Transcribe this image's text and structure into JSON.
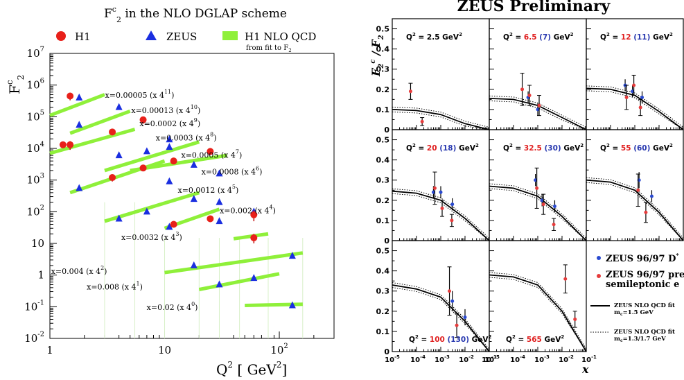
{
  "left": {
    "title": "F",
    "title_sub": "2",
    "title_sup": "c",
    "title_rest": " in  the  NLO DGLAP  scheme",
    "legend": [
      {
        "label": "H1",
        "marker": "circle",
        "color": "#e8201a"
      },
      {
        "label": "ZEUS",
        "marker": "triangle",
        "color": "#1a2ee0"
      },
      {
        "label": "H1 NLO QCD",
        "marker": "band",
        "color": "#8ff03a",
        "note": "from fit to F",
        "note_sub": "2"
      }
    ],
    "ylabel": "F",
    "ylabel_sub": "2",
    "ylabel_sup": "c",
    "xlabel": "Q",
    "xlabel_sup": "2",
    "xlabel_unit": "[ GeV",
    "xlabel_unit_sup": "2",
    "xlabel_unit_end": "]",
    "xticks": [
      {
        "v": 1,
        "l": "1"
      },
      {
        "v": 10,
        "l": "10"
      },
      {
        "v": 100,
        "l": "10"
      }
    ],
    "xtick_sup": [
      "",
      "",
      "2"
    ],
    "yticks": [
      {
        "e": -2,
        "l": "10",
        "s": "-2"
      },
      {
        "e": -1,
        "l": "10",
        "s": "-1"
      },
      {
        "e": 0,
        "l": "1",
        "s": ""
      },
      {
        "e": 1,
        "l": "10",
        "s": ""
      },
      {
        "e": 2,
        "l": "10",
        "s": "2"
      },
      {
        "e": 3,
        "l": "10",
        "s": "3"
      },
      {
        "e": 4,
        "l": "10",
        "s": "4"
      },
      {
        "e": 5,
        "l": "10",
        "s": "5"
      },
      {
        "e": 6,
        "l": "10",
        "s": "6"
      },
      {
        "e": 7,
        "l": "10",
        "s": "7"
      }
    ],
    "bin_labels": [
      {
        "text": "x=0.00005 (x 4",
        "sup": "11",
        "q2": 6.5,
        "f": 400000
      },
      {
        "text": "x=0.00013 (x 4",
        "sup": "10",
        "q2": 11,
        "f": 130000
      },
      {
        "text": "x=0.0002 (x 4",
        "sup": "9",
        "q2": 13,
        "f": 50000
      },
      {
        "text": "x=0.0003 (x 4",
        "sup": "8",
        "q2": 18,
        "f": 18000
      },
      {
        "text": "x=0.0005 (x 4",
        "sup": "7",
        "q2": 30,
        "f": 5000
      },
      {
        "text": "x=0.0008 (x 4",
        "sup": "6",
        "q2": 45,
        "f": 1500
      },
      {
        "text": "x=0.0012 (x 4",
        "sup": "5",
        "q2": 28,
        "f": 400
      },
      {
        "text": "x=0.002 (x 4",
        "sup": "4",
        "q2": 65,
        "f": 90
      },
      {
        "text": "x=0.0032 (x 4",
        "sup": "3",
        "q2": 9,
        "f": 13
      },
      {
        "text": "x=0.004 (x 4",
        "sup": "2",
        "q2": 2.2,
        "f": 1.1
      },
      {
        "text": "x=0.008 (x 4",
        "sup": "1",
        "q2": 4.5,
        "f": 0.35
      },
      {
        "text": "x=0.02 (x 4",
        "sup": "0",
        "q2": 15,
        "f": 0.08
      }
    ]
  },
  "chart_data": [
    {
      "type": "scatter",
      "xscale": "log",
      "yscale": "log",
      "xlim": [
        1,
        300
      ],
      "ylim": [
        0.01,
        10000000
      ],
      "series": [
        {
          "name": "H1",
          "points": [
            [
              1.5,
              450000
            ],
            [
              1.5,
              13000
            ],
            [
              3.5,
              33000
            ],
            [
              1.3,
              13000
            ],
            [
              6.5,
              80000
            ],
            [
              3.5,
              1200
            ],
            [
              6.5,
              2400
            ],
            [
              12,
              4000
            ],
            [
              25,
              8000
            ],
            [
              12,
              40
            ],
            [
              25,
              60
            ],
            [
              60,
              80
            ],
            [
              60,
              15
            ]
          ],
          "yerr": [
            [
              120000,
              120000
            ],
            [
              4000,
              4000
            ],
            [
              6000,
              6000
            ],
            [
              0,
              0
            ],
            [
              20000,
              20000
            ],
            [
              300,
              300
            ],
            [
              300,
              300
            ],
            [
              700,
              700
            ],
            [
              1800,
              1800
            ],
            [
              8,
              8
            ],
            [
              8,
              8
            ],
            [
              30,
              30
            ],
            [
              5,
              5
            ]
          ]
        },
        {
          "name": "ZEUS",
          "points": [
            [
              1.8,
              400000
            ],
            [
              1.8,
              55000
            ],
            [
              4,
              200000
            ],
            [
              1.8,
              550
            ],
            [
              4,
              6000
            ],
            [
              7,
              8000
            ],
            [
              11,
              11000
            ],
            [
              11,
              19000
            ],
            [
              18,
              3000
            ],
            [
              30,
              1600
            ],
            [
              11,
              900
            ],
            [
              18,
              250
            ],
            [
              30,
              200
            ],
            [
              4,
              60
            ],
            [
              7,
              100
            ],
            [
              11,
              33
            ],
            [
              30,
              50
            ],
            [
              60,
              100
            ],
            [
              18,
              2
            ],
            [
              30,
              0.5
            ],
            [
              60,
              0.8
            ],
            [
              130,
              4
            ],
            [
              130,
              0.11
            ]
          ]
        },
        {
          "name": "H1 NLO QCD",
          "segments": [
            {
              "q2": [
                1,
                3
              ],
              "f": [
                110000,
                500000
              ]
            },
            {
              "q2": [
                1.5,
                5
              ],
              "f": [
                30000,
                150000
              ]
            },
            {
              "q2": [
                1,
                5.5
              ],
              "f": [
                7000,
                40000
              ]
            },
            {
              "q2": [
                1.5,
                10
              ],
              "f": [
                400,
                4000
              ]
            },
            {
              "q2": [
                3,
                20
              ],
              "f": [
                2000,
                16000
              ]
            },
            {
              "q2": [
                5,
                35
              ],
              "f": [
                2000,
                6000
              ]
            },
            {
              "q2": [
                3,
                20
              ],
              "f": [
                50,
                400
              ]
            },
            {
              "q2": [
                10,
                30
              ],
              "f": [
                30,
                120
              ]
            },
            {
              "q2": [
                40,
                80
              ],
              "f": [
                14,
                20
              ]
            },
            {
              "q2": [
                10,
                160
              ],
              "f": [
                1.2,
                5
              ]
            },
            {
              "q2": [
                20,
                100
              ],
              "f": [
                0.35,
                1.1
              ]
            },
            {
              "q2": [
                50,
                160
              ],
              "f": [
                0.11,
                0.12
              ]
            }
          ]
        }
      ]
    },
    {
      "type": "scatter",
      "title": "ZEUS Preliminary",
      "ylabel": "F",
      "ylabel_sub": "2",
      "ylabel_sup": "c",
      "ylabel_mid": " / F",
      "ylabel_mid_sub": "2",
      "xlabel": "x",
      "xscale": "log",
      "xlim": [
        1e-05,
        0.1
      ],
      "yticks": [
        "0",
        "0.1",
        "0.2",
        "0.3",
        "0.4",
        "0.5"
      ],
      "xtick_labels": [
        {
          "l": "10",
          "s": "-5"
        },
        {
          "l": "10",
          "s": "-4"
        },
        {
          "l": "10",
          "s": "-3"
        },
        {
          "l": "10",
          "s": "-2"
        },
        {
          "l": "10",
          "s": "-1"
        }
      ],
      "panels": [
        {
          "q2_label_pre": "Q",
          "q2_label_red": "2.5",
          "q2_label_blue": "",
          "q2_label_unit": "GeV",
          "q2_label_full": "Q² = 2.5 GeV²",
          "plain": true,
          "red": [
            [
              5e-05,
              0.19,
              0.04
            ],
            [
              0.00015,
              0.04,
              0.02
            ]
          ],
          "blue": [],
          "fit": [
            [
              1e-05,
              0.1
            ],
            [
              0.0001,
              0.095
            ],
            [
              0.001,
              0.075
            ],
            [
              0.01,
              0.03
            ],
            [
              0.1,
              0.0
            ]
          ]
        },
        {
          "q2_label_pre": "Q",
          "q2_label_red": "6.5",
          "q2_label_blue": "(7)",
          "q2_label_unit": "GeV",
          "q2_label_full": "Q² = 6.5 (7) GeV²",
          "plain": false,
          "red": [
            [
              0.0002,
              0.2,
              0.08
            ],
            [
              0.0004,
              0.17,
              0.05
            ],
            [
              0.001,
              0.12,
              0.05
            ]
          ],
          "blue": [
            [
              0.0004,
              0.16,
              0.03
            ],
            [
              0.001,
              0.1,
              0.03
            ]
          ],
          "fit": [
            [
              1e-05,
              0.155
            ],
            [
              0.0001,
              0.15
            ],
            [
              0.001,
              0.12
            ],
            [
              0.01,
              0.06
            ],
            [
              0.1,
              0.0
            ]
          ]
        },
        {
          "q2_label_pre": "Q",
          "q2_label_red": "12",
          "q2_label_blue": "(11)",
          "q2_label_unit": "GeV",
          "q2_label_full": "Q² = 12 (11) GeV²",
          "plain": false,
          "red": [
            [
              0.0004,
              0.16,
              0.06
            ],
            [
              0.0008,
              0.22,
              0.05
            ],
            [
              0.0015,
              0.11,
              0.04
            ]
          ],
          "blue": [
            [
              0.0004,
              0.22,
              0.03
            ],
            [
              0.0008,
              0.19,
              0.03
            ],
            [
              0.002,
              0.16,
              0.03
            ]
          ],
          "fit": [
            [
              1e-05,
              0.205
            ],
            [
              0.0001,
              0.2
            ],
            [
              0.001,
              0.17
            ],
            [
              0.01,
              0.09
            ],
            [
              0.1,
              0.0
            ]
          ]
        },
        {
          "q2_label_pre": "Q",
          "q2_label_red": "20",
          "q2_label_blue": "(18)",
          "q2_label_unit": "GeV",
          "q2_label_full": "Q² = 20 (18) GeV²",
          "plain": false,
          "red": [
            [
              0.0005,
              0.26,
              0.08
            ],
            [
              0.001,
              0.16,
              0.04
            ],
            [
              0.0025,
              0.1,
              0.03
            ]
          ],
          "blue": [
            [
              0.0005,
              0.24,
              0.03
            ],
            [
              0.001,
              0.24,
              0.03
            ],
            [
              0.003,
              0.18,
              0.03
            ]
          ],
          "fit": [
            [
              1e-05,
              0.245
            ],
            [
              0.0001,
              0.235
            ],
            [
              0.001,
              0.2
            ],
            [
              0.01,
              0.11
            ],
            [
              0.1,
              0.0
            ]
          ]
        },
        {
          "q2_label_pre": "Q",
          "q2_label_red": "32.5",
          "q2_label_blue": "(30)",
          "q2_label_unit": "GeV",
          "q2_label_full": "Q² = 32.5 (30) GeV²",
          "plain": false,
          "red": [
            [
              0.0008,
              0.26,
              0.1
            ],
            [
              0.0015,
              0.18,
              0.05
            ],
            [
              0.004,
              0.08,
              0.03
            ]
          ],
          "blue": [
            [
              0.0008,
              0.3,
              0.03
            ],
            [
              0.0015,
              0.2,
              0.03
            ],
            [
              0.005,
              0.17,
              0.03
            ]
          ],
          "fit": [
            [
              1e-05,
              0.27
            ],
            [
              0.0001,
              0.26
            ],
            [
              0.001,
              0.22
            ],
            [
              0.01,
              0.12
            ],
            [
              0.1,
              0.0
            ]
          ]
        },
        {
          "q2_label_pre": "Q",
          "q2_label_red": "55",
          "q2_label_blue": "(60)",
          "q2_label_unit": "GeV",
          "q2_label_full": "Q² = 55 (60) GeV²",
          "plain": false,
          "red": [
            [
              0.0012,
              0.25,
              0.08
            ],
            [
              0.0025,
              0.14,
              0.05
            ]
          ],
          "blue": [
            [
              0.0015,
              0.3,
              0.04
            ],
            [
              0.005,
              0.22,
              0.03
            ]
          ],
          "fit": [
            [
              1e-05,
              0.3
            ],
            [
              0.0001,
              0.29
            ],
            [
              0.001,
              0.25
            ],
            [
              0.01,
              0.14
            ],
            [
              0.1,
              0.0
            ]
          ]
        },
        {
          "q2_label_pre": "Q",
          "q2_label_red": "100",
          "q2_label_blue": "(130)",
          "q2_label_unit": "GeV",
          "q2_label_full": "Q² = 100 (130) GeV²",
          "plain": false,
          "red": [
            [
              0.002,
              0.3,
              0.12
            ],
            [
              0.004,
              0.13,
              0.06
            ]
          ],
          "blue": [
            [
              0.003,
              0.25,
              0.05
            ],
            [
              0.01,
              0.17,
              0.04
            ]
          ],
          "fit": [
            [
              1e-05,
              0.33
            ],
            [
              0.0001,
              0.31
            ],
            [
              0.001,
              0.27
            ],
            [
              0.01,
              0.15
            ],
            [
              0.1,
              0.0
            ]
          ]
        },
        {
          "q2_label_pre": "Q",
          "q2_label_red": "565",
          "q2_label_blue": "",
          "q2_label_unit": "GeV",
          "q2_label_full": "Q² = 565 GeV²",
          "plain": false,
          "red": [
            [
              0.012,
              0.36,
              0.07
            ],
            [
              0.03,
              0.16,
              0.04
            ]
          ],
          "blue": [],
          "fit": [
            [
              1e-05,
              0.38
            ],
            [
              0.0001,
              0.37
            ],
            [
              0.001,
              0.33
            ],
            [
              0.01,
              0.2
            ],
            [
              0.1,
              0.0
            ]
          ]
        }
      ],
      "legend": [
        {
          "label": "ZEUS 96/97 D",
          "sup": "*",
          "marker": "dot",
          "color": "#2a4ad0"
        },
        {
          "label": "ZEUS 96/97 prel.",
          "label2": "semileptonic e",
          "marker": "dot",
          "color": "#e63c3c"
        },
        {
          "label": "ZEUS NLO QCD fit",
          "label2": "m",
          "label2_sub": "c",
          "label2_rest": "=1.5 GeV",
          "marker": "solid"
        },
        {
          "label": "ZEUS NLO QCD fit",
          "label2": "m",
          "label2_sub": "c",
          "label2_rest": "=1.3/1.7 GeV",
          "marker": "dotted"
        }
      ]
    }
  ]
}
